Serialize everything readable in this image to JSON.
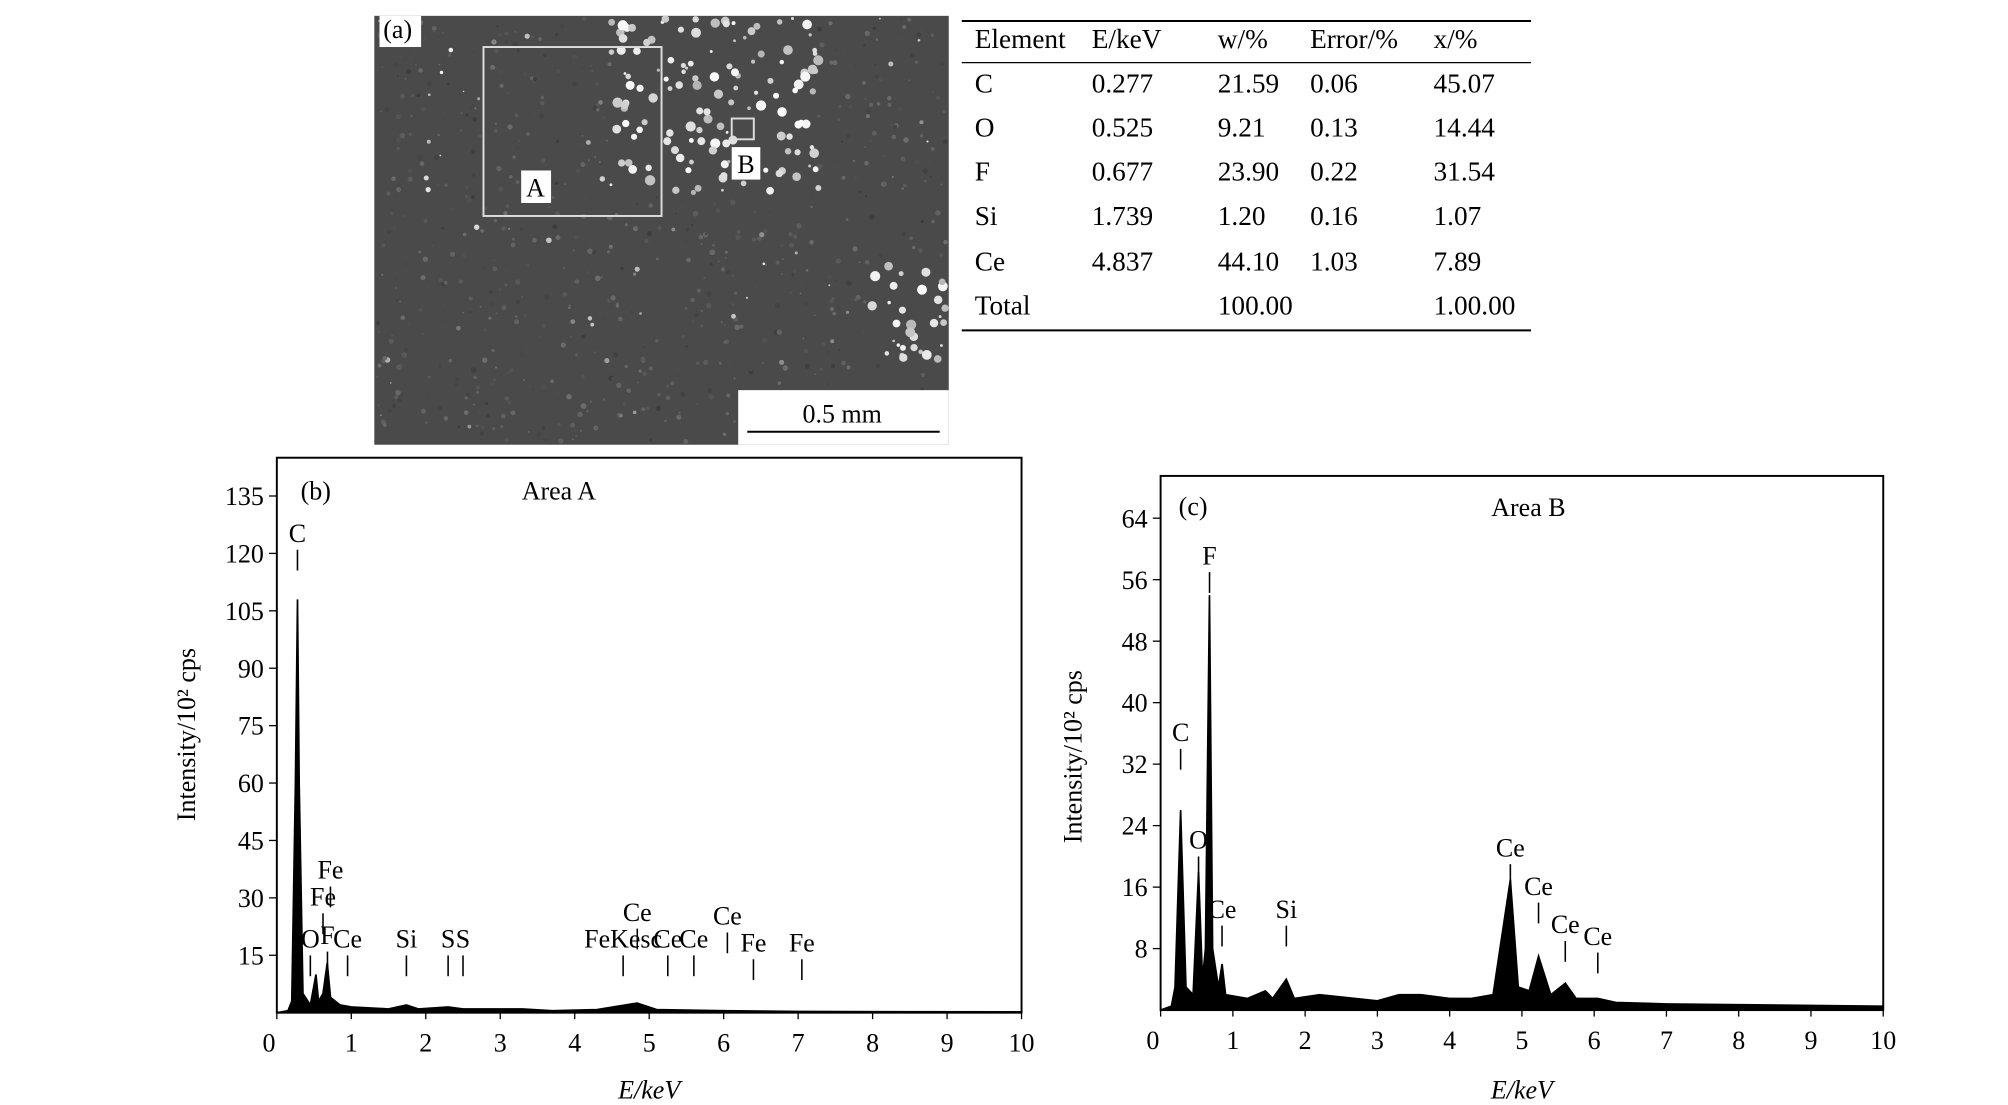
{
  "panel_a": {
    "label": "(a)",
    "region_a": "A",
    "region_b": "B",
    "scale_bar": "0.5 mm"
  },
  "table": {
    "headers": [
      "Element",
      "E/keV",
      "w/%",
      "Error/%",
      "x/%"
    ],
    "rows": [
      [
        "C",
        "0.277",
        "21.59",
        "0.06",
        "45.07"
      ],
      [
        "O",
        "0.525",
        "9.21",
        "0.13",
        "14.44"
      ],
      [
        "F",
        "0.677",
        "23.90",
        "0.22",
        "31.54"
      ],
      [
        "Si",
        "1.739",
        "1.20",
        "0.16",
        "1.07"
      ],
      [
        "Ce",
        "4.837",
        "44.10",
        "1.03",
        "7.89"
      ],
      [
        "Total",
        null,
        "100.00",
        null,
        "1.00.00"
      ]
    ]
  },
  "chart_data": [
    {
      "type": "line",
      "panel": "(b)",
      "title": "Area A",
      "x_label": "E/keV",
      "y_label": "Intensity/10² cps",
      "xlim": [
        0,
        10
      ],
      "xticks": [
        0,
        1,
        2,
        3,
        4,
        5,
        6,
        7,
        8,
        9,
        10
      ],
      "ylim": [
        0,
        145
      ],
      "yticks": [
        15,
        30,
        45,
        60,
        75,
        90,
        105,
        120,
        135
      ],
      "color": "#000000",
      "x": [
        0,
        0.15,
        0.2,
        0.25,
        0.277,
        0.3,
        0.35,
        0.45,
        0.525,
        0.56,
        0.62,
        0.677,
        0.72,
        0.85,
        1,
        1.5,
        1.74,
        1.9,
        2.3,
        2.5,
        3.3,
        3.7,
        4.3,
        4.84,
        5.1,
        6,
        7,
        10
      ],
      "values": [
        0,
        0.5,
        3,
        60,
        108,
        60,
        5,
        2,
        10,
        3,
        5,
        13,
        4,
        2,
        1.5,
        1,
        2,
        1,
        1.5,
        1,
        1,
        0.5,
        0.8,
        2.5,
        0.8,
        0.5,
        0.3,
        0.2
      ],
      "annotations": [
        {
          "text": "C",
          "x": 0.277,
          "y": 123
        },
        {
          "text": "Fe",
          "x": 0.72,
          "y": 35
        },
        {
          "text": "Fe",
          "x": 0.62,
          "y": 28
        },
        {
          "text": "O",
          "x": 0.45,
          "y": 17
        },
        {
          "text": "F",
          "x": 0.68,
          "y": 18
        },
        {
          "text": "Ce",
          "x": 0.95,
          "y": 17
        },
        {
          "text": "Si",
          "x": 1.74,
          "y": 17
        },
        {
          "text": "S",
          "x": 2.3,
          "y": 17
        },
        {
          "text": "S",
          "x": 2.5,
          "y": 17
        },
        {
          "text": "FeKesc",
          "x": 4.65,
          "y": 17
        },
        {
          "text": "Ce",
          "x": 4.84,
          "y": 24
        },
        {
          "text": "Ce",
          "x": 5.25,
          "y": 17
        },
        {
          "text": "Ce",
          "x": 5.6,
          "y": 17
        },
        {
          "text": "Ce",
          "x": 6.05,
          "y": 23
        },
        {
          "text": "Fe",
          "x": 6.4,
          "y": 16
        },
        {
          "text": "Fe",
          "x": 7.05,
          "y": 16
        }
      ]
    },
    {
      "type": "line",
      "panel": "(c)",
      "title": "Area B",
      "x_label": "E/keV",
      "y_label": "Intensity/10² cps",
      "xlim": [
        0,
        10
      ],
      "xticks": [
        0,
        1,
        2,
        3,
        4,
        5,
        6,
        7,
        8,
        9,
        10
      ],
      "ylim": [
        0,
        69.5
      ],
      "yticks": [
        8,
        16,
        24,
        32,
        40,
        48,
        56,
        64
      ],
      "color": "#000000",
      "x": [
        0,
        0.15,
        0.2,
        0.277,
        0.35,
        0.45,
        0.525,
        0.58,
        0.62,
        0.677,
        0.72,
        0.8,
        0.85,
        0.9,
        1.2,
        1.45,
        1.55,
        1.74,
        1.85,
        2.2,
        3,
        3.3,
        3.6,
        4,
        4.3,
        4.6,
        4.84,
        4.95,
        5.1,
        5.23,
        5.4,
        5.6,
        5.75,
        6.05,
        6.3,
        7,
        10
      ],
      "values": [
        0,
        0.5,
        3,
        26,
        3,
        2,
        18,
        4,
        8,
        54,
        8,
        3,
        6,
        2,
        1.5,
        2.5,
        1.5,
        4,
        1.5,
        2,
        1.2,
        2,
        2,
        1.5,
        1.5,
        2,
        17,
        3,
        2.5,
        7,
        2,
        3.5,
        1.5,
        1.5,
        1,
        0.8,
        0.5
      ],
      "annotations": [
        {
          "text": "C",
          "x": 0.277,
          "y": 35
        },
        {
          "text": "O",
          "x": 0.525,
          "y": 21
        },
        {
          "text": "F",
          "x": 0.677,
          "y": 58
        },
        {
          "text": "Ce",
          "x": 0.85,
          "y": 12
        },
        {
          "text": "Si",
          "x": 1.74,
          "y": 12
        },
        {
          "text": "Ce",
          "x": 4.84,
          "y": 20
        },
        {
          "text": "Ce",
          "x": 5.23,
          "y": 15
        },
        {
          "text": "Ce",
          "x": 5.6,
          "y": 10
        },
        {
          "text": "Ce",
          "x": 6.05,
          "y": 8.5
        }
      ]
    }
  ]
}
